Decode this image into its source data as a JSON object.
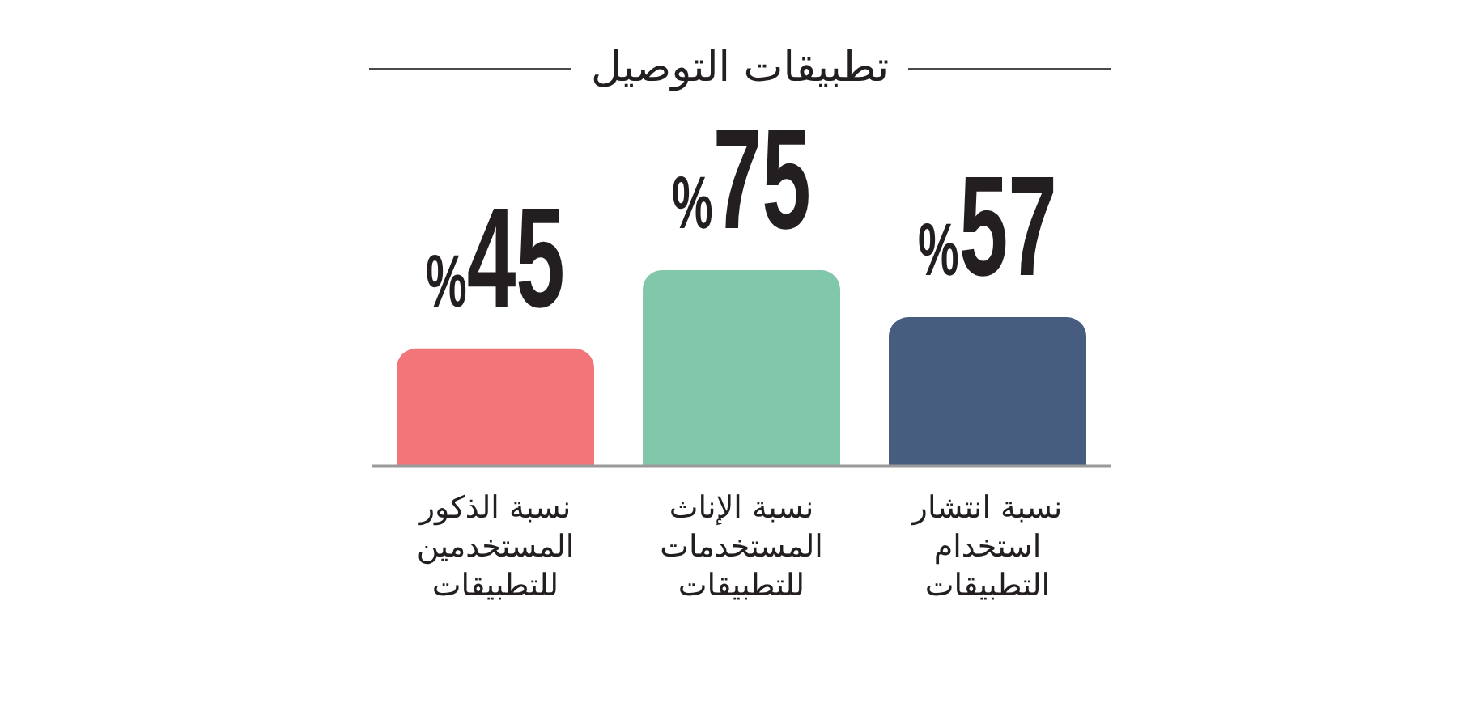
{
  "chart_data": {
    "type": "bar",
    "title": "تطبيقات التوصيل",
    "categories": [
      "نسبة الذكور المستخدمين للتطبيقات",
      "نسبة الإناث المستخدمات للتطبيقات",
      "نسبة انتشار استخدام التطبيقات"
    ],
    "values": [
      45,
      75,
      57
    ],
    "colors": [
      "#f27579",
      "#81c7aa",
      "#465d80"
    ],
    "value_labels": [
      "%45",
      "%75",
      "%57"
    ]
  }
}
